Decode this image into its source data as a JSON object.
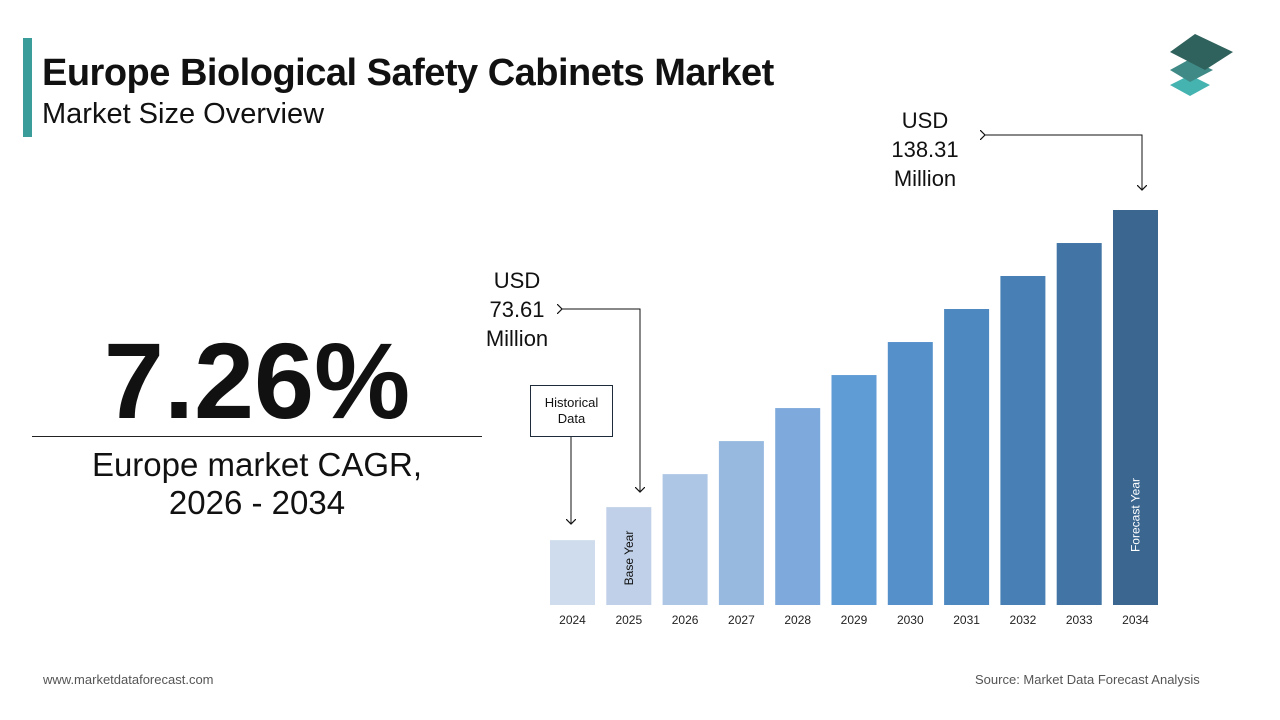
{
  "header": {
    "title": "Europe Biological Safety Cabinets Market",
    "subtitle": "Market Size Overview"
  },
  "kpi": {
    "cagr": "7.26%",
    "label_line1": "Europe market CAGR,",
    "label_line2": "2026 - 2034"
  },
  "annotations": {
    "start": {
      "line1": "USD",
      "line2": "73.61",
      "line3": "Million"
    },
    "end": {
      "line1": "USD",
      "line2": "138.31",
      "line3": "Million"
    },
    "historical": {
      "line1": "Historical",
      "line2": "Data"
    },
    "base_year": "Base Year",
    "forecast_year": "Forecast Year"
  },
  "footer": {
    "website": "www.marketdataforecast.com",
    "source": "Source: Market Data Forecast Analysis"
  },
  "colors": {
    "accent": "#3a9d9a",
    "logo": [
      "#2f625c",
      "#3f8a86",
      "#45b3b0"
    ]
  },
  "chart_data": {
    "type": "bar",
    "categories": [
      "2024",
      "2025",
      "2026",
      "2027",
      "2028",
      "2029",
      "2030",
      "2031",
      "2032",
      "2033",
      "2034"
    ],
    "values": [
      66.42,
      73.61,
      80.8,
      87.99,
      95.18,
      102.37,
      109.56,
      116.75,
      123.94,
      131.12,
      138.31
    ],
    "bar_colors": [
      "#cfdcee",
      "#bfd0e8",
      "#aec6e5",
      "#97b9e0",
      "#7ea9dc",
      "#5f9bd5",
      "#5590cb",
      "#4e88c0",
      "#4880b5",
      "#4275a6",
      "#3a6690"
    ],
    "ylim": [
      52.3,
      138.31
    ],
    "grid": false,
    "unit": "USD Million"
  }
}
